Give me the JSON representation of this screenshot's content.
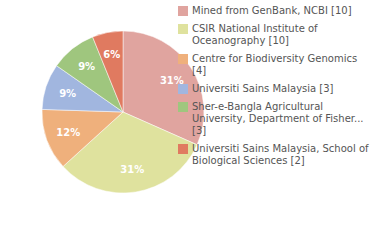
{
  "chart_data": {
    "type": "pie",
    "categories": [
      "Mined from GenBank, NCBI [10]",
      "CSIR National Institute of Oceanography [10]",
      "Centre for Biodiversity Genomics [4]",
      "Universiti Sains Malaysia [3]",
      "Sher-e-Bangla Agricultural University, Department of Fisher... [3]",
      "Universiti Sains Malaysia, School of Biological Sciences [2]"
    ],
    "values": [
      31,
      31,
      12,
      9,
      9,
      6
    ],
    "value_labels": [
      "31%",
      "31%",
      "12%",
      "9%",
      "9%",
      "6%"
    ],
    "colors": [
      "#e0a49f",
      "#dfe29e",
      "#efb07c",
      "#a1b6df",
      "#9fc67e",
      "#e07a60"
    ],
    "data_labels": true,
    "legend": "right"
  }
}
